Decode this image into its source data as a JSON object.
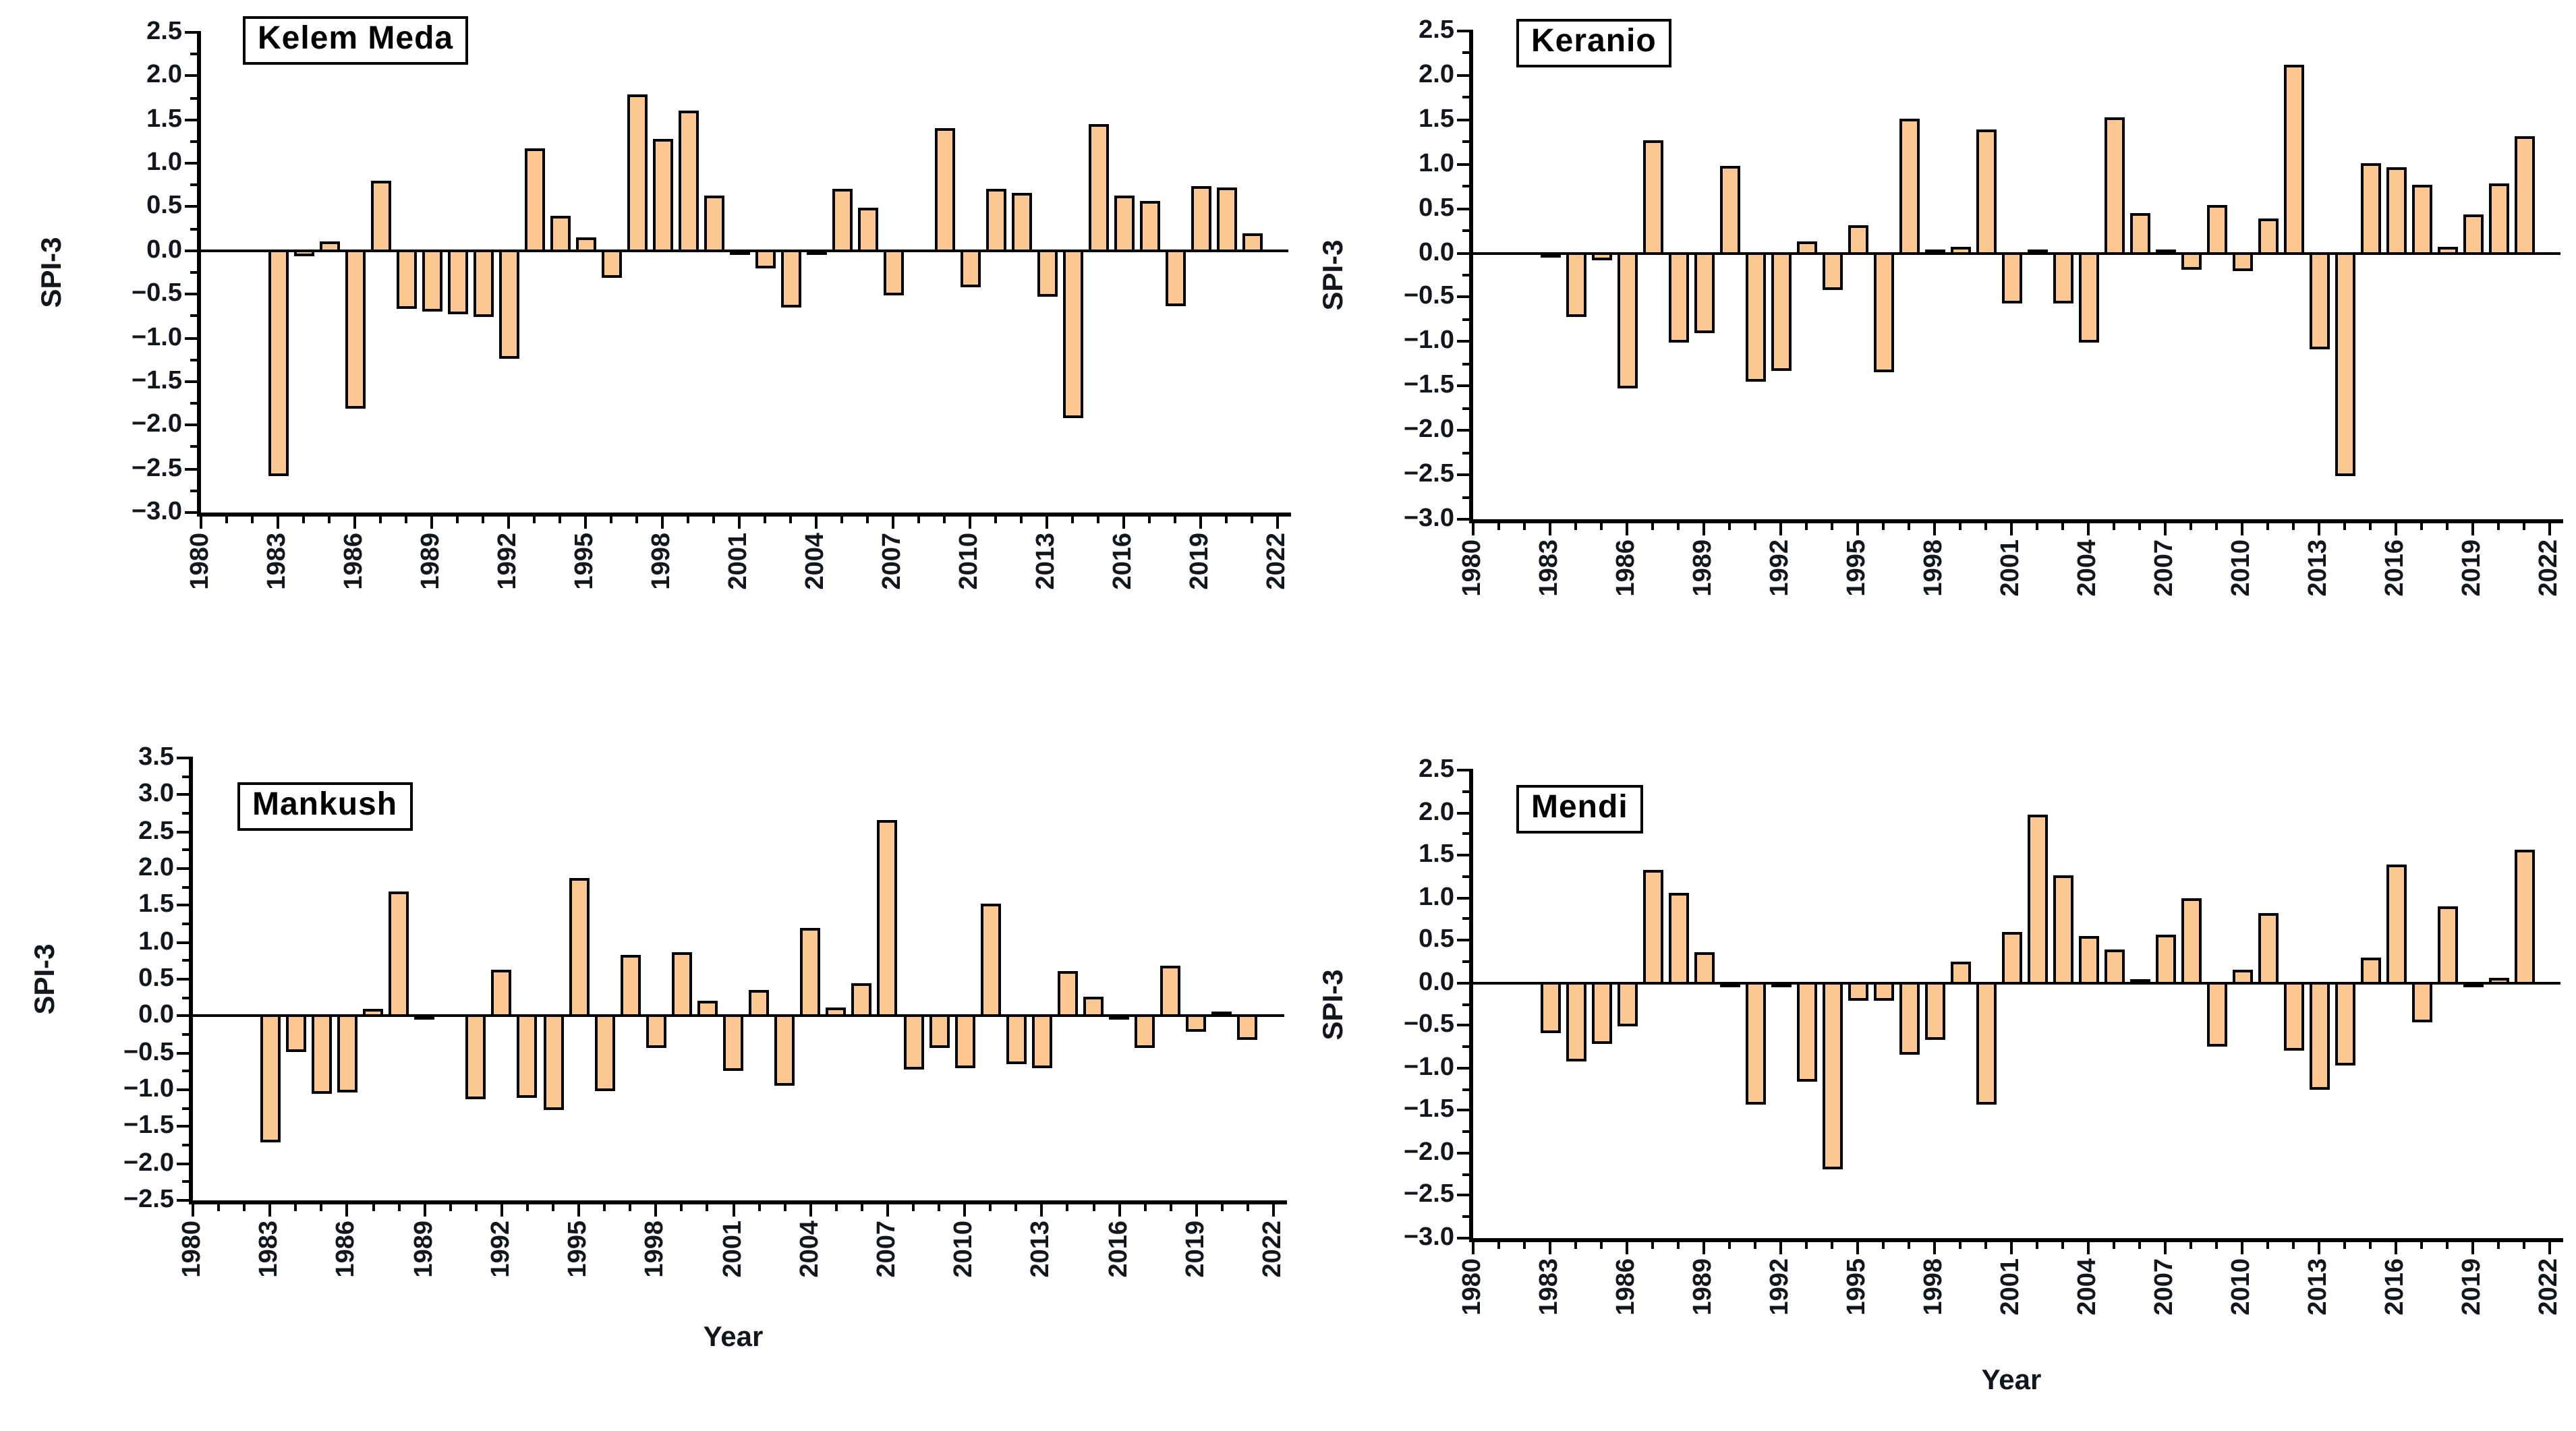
{
  "figure": {
    "y_axis_label": "SPI-3",
    "x_axis_label": "Year",
    "bar_fill_color": "#FDC792",
    "bar_edge_color": "#000000",
    "tick_text_color": "#15151d"
  },
  "chart_data": [
    {
      "type": "bar",
      "title": "Kelem Meda",
      "ylabel": "SPI-3",
      "xlabel": "",
      "ylim": [
        -3.0,
        2.5
      ],
      "ytick_step": 0.5,
      "yminor_step": 0.25,
      "xlim": [
        1980,
        2022
      ],
      "xtick_step": 3,
      "xminor_step": 1,
      "grid": false,
      "legend": null,
      "bar_color": "#FDC792",
      "bar_edge": "#000000",
      "years": [
        1983,
        1984,
        1985,
        1986,
        1987,
        1988,
        1989,
        1990,
        1991,
        1992,
        1993,
        1994,
        1995,
        1996,
        1997,
        1998,
        1999,
        2000,
        2001,
        2002,
        2003,
        2004,
        2005,
        2006,
        2007,
        2009,
        2010,
        2011,
        2012,
        2013,
        2014,
        2015,
        2016,
        2017,
        2018,
        2019,
        2020,
        2021
      ],
      "values": [
        -2.6,
        -0.08,
        0.12,
        -1.82,
        0.82,
        -0.68,
        -0.72,
        -0.75,
        -0.78,
        -1.25,
        1.18,
        0.42,
        0.17,
        -0.32,
        1.8,
        1.3,
        1.62,
        0.65,
        -0.04,
        -0.22,
        -0.66,
        -0.04,
        0.72,
        0.51,
        -0.53,
        1.42,
        -0.43,
        0.72,
        0.68,
        -0.54,
        -1.93,
        1.47,
        0.64,
        0.58,
        -0.65,
        0.76,
        0.74,
        0.22
      ]
    },
    {
      "type": "bar",
      "title": "Keranio",
      "ylabel": "SPI-3",
      "xlabel": "",
      "ylim": [
        -3.0,
        2.5
      ],
      "ytick_step": 0.5,
      "yminor_step": 0.25,
      "xlim": [
        1980,
        2022
      ],
      "xtick_step": 3,
      "xminor_step": 1,
      "grid": false,
      "legend": null,
      "bar_color": "#FDC792",
      "bar_edge": "#000000",
      "years": [
        1983,
        1984,
        1985,
        1986,
        1987,
        1988,
        1989,
        1990,
        1991,
        1992,
        1993,
        1994,
        1995,
        1996,
        1997,
        1998,
        1999,
        2000,
        2001,
        2002,
        2003,
        2004,
        2005,
        2006,
        2007,
        2008,
        2009,
        2010,
        2011,
        2012,
        2013,
        2014,
        2015,
        2016,
        2017,
        2018,
        2019,
        2020,
        2021
      ],
      "values": [
        -0.04,
        -0.73,
        -0.1,
        -1.54,
        1.28,
        -1.03,
        -0.92,
        1.0,
        -1.47,
        -1.35,
        0.14,
        -0.44,
        0.32,
        -1.36,
        1.53,
        0.06,
        0.09,
        1.4,
        -0.59,
        0.04,
        -0.58,
        -1.02,
        1.55,
        0.46,
        0.02,
        -0.2,
        0.55,
        -0.22,
        0.4,
        2.13,
        -1.1,
        -2.53,
        1.02,
        0.98,
        0.78,
        0.08,
        0.45,
        0.8,
        1.33
      ]
    },
    {
      "type": "bar",
      "title": "Mankush",
      "ylabel": "SPI-3",
      "xlabel": "Year",
      "ylim": [
        -2.5,
        3.5
      ],
      "ytick_step": 0.5,
      "yminor_step": 0.25,
      "xlim": [
        1980,
        2022
      ],
      "xtick_step": 3,
      "xminor_step": 1,
      "grid": false,
      "legend": null,
      "bar_color": "#FDC792",
      "bar_edge": "#000000",
      "years": [
        1983,
        1984,
        1985,
        1986,
        1987,
        1988,
        1989,
        1991,
        1992,
        1993,
        1994,
        1995,
        1996,
        1997,
        1998,
        1999,
        2000,
        2001,
        2002,
        2003,
        2004,
        2005,
        2006,
        2007,
        2008,
        2009,
        2010,
        2011,
        2012,
        2013,
        2014,
        2015,
        2016,
        2017,
        2018,
        2019,
        2020,
        2021
      ],
      "values": [
        -1.74,
        -0.5,
        -1.08,
        -1.05,
        0.11,
        1.7,
        -0.04,
        -1.15,
        0.65,
        -1.12,
        -1.3,
        1.89,
        -1.04,
        0.85,
        -0.46,
        0.89,
        0.22,
        -0.77,
        0.38,
        -0.97,
        1.21,
        0.13,
        0.47,
        2.67,
        -0.75,
        -0.45,
        -0.73,
        1.55,
        -0.67,
        -0.72,
        0.63,
        0.28,
        -0.04,
        -0.45,
        0.7,
        -0.23,
        0.03,
        -0.35
      ]
    },
    {
      "type": "bar",
      "title": "Mendi",
      "ylabel": "SPI-3",
      "xlabel": "Year",
      "ylim": [
        -3.0,
        2.5
      ],
      "ytick_step": 0.5,
      "yminor_step": 0.25,
      "xlim": [
        1980,
        2022
      ],
      "xtick_step": 3,
      "xminor_step": 1,
      "grid": false,
      "legend": null,
      "bar_color": "#FDC792",
      "bar_edge": "#000000",
      "years": [
        1983,
        1984,
        1985,
        1986,
        1987,
        1988,
        1989,
        1990,
        1991,
        1992,
        1993,
        1994,
        1995,
        1996,
        1997,
        1998,
        1999,
        2000,
        2001,
        2002,
        2003,
        2004,
        2005,
        2006,
        2007,
        2008,
        2009,
        2010,
        2011,
        2012,
        2013,
        2014,
        2015,
        2016,
        2017,
        2018,
        2019,
        2020,
        2021
      ],
      "values": [
        -0.61,
        -0.94,
        -0.74,
        -0.53,
        1.34,
        1.08,
        0.37,
        -0.05,
        -1.45,
        -0.05,
        -1.18,
        -2.21,
        -0.22,
        -0.22,
        -0.86,
        -0.68,
        0.26,
        -1.44,
        0.62,
        2.0,
        1.28,
        0.56,
        0.4,
        0.03,
        0.59,
        1.01,
        -0.77,
        0.17,
        0.84,
        -0.81,
        -1.28,
        -0.99,
        0.32,
        1.4,
        -0.48,
        0.91,
        -0.07,
        0.08,
        1.58
      ]
    }
  ]
}
